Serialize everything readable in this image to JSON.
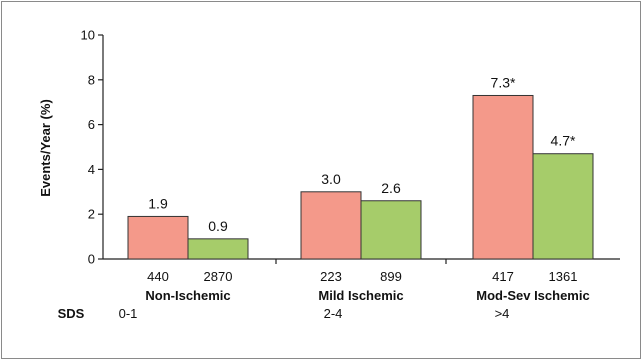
{
  "chart_data": {
    "type": "bar",
    "ylabel": "Events/Year (%)",
    "ylim": [
      0,
      10
    ],
    "yticks": [
      "0",
      "2",
      "4",
      "6",
      "8",
      "10"
    ],
    "ytick_values": [
      0,
      2,
      4,
      6,
      8,
      10
    ],
    "groups": [
      {
        "name": "Non-Ischemic",
        "sds": "0-1",
        "bars": [
          {
            "value": 1.9,
            "label": "1.9",
            "n": "440",
            "color": "#f4998a"
          },
          {
            "value": 0.9,
            "label": "0.9",
            "n": "2870",
            "color": "#a6cc6a"
          }
        ]
      },
      {
        "name": "Mild Ischemic",
        "sds": "2-4",
        "bars": [
          {
            "value": 3.0,
            "label": "3.0",
            "n": "223",
            "color": "#f4998a"
          },
          {
            "value": 2.6,
            "label": "2.6",
            "n": "899",
            "color": "#a6cc6a"
          }
        ]
      },
      {
        "name": "Mod-Sev Ischemic",
        "sds": ">4",
        "bars": [
          {
            "value": 7.3,
            "label": "7.3*",
            "n": "417",
            "color": "#f4998a"
          },
          {
            "value": 4.7,
            "label": "4.7*",
            "n": "1361",
            "color": "#a6cc6a"
          }
        ]
      }
    ],
    "sds_label": "SDS",
    "grid": false
  }
}
